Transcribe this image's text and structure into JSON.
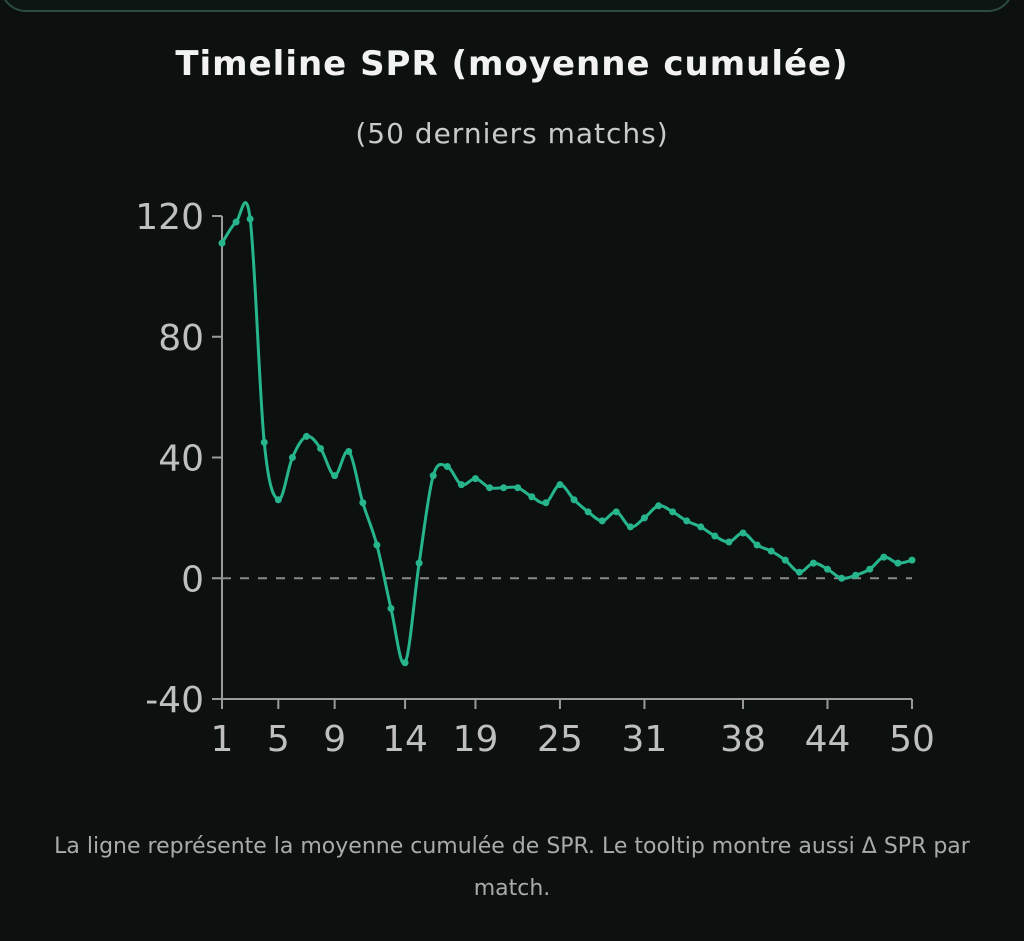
{
  "title": "Timeline SPR (moyenne cumulée)",
  "subtitle": "(50 derniers matchs)",
  "footnote": "La ligne représente la moyenne cumulée de SPR. Le tooltip montre aussi Δ SPR par match.",
  "colors": {
    "background": "#0c110f",
    "line": "#26b58c",
    "axis": "#9a9a9a",
    "zero_line": "#8a8a8a",
    "text": "#bfbfbf"
  },
  "chart_data": {
    "type": "line",
    "title": "Timeline SPR (moyenne cumulée)",
    "subtitle": "(50 derniers matchs)",
    "xlabel": "",
    "ylabel": "",
    "xlim": [
      1,
      50
    ],
    "ylim": [
      -40,
      120
    ],
    "x_ticks": [
      1,
      5,
      9,
      14,
      19,
      25,
      31,
      38,
      44,
      50
    ],
    "y_ticks": [
      -40,
      0,
      40,
      80,
      120
    ],
    "reference_line": {
      "y": 0,
      "style": "dashed"
    },
    "grid": false,
    "series": [
      {
        "x": [
          1,
          2,
          3,
          4,
          5,
          6,
          7,
          8,
          9,
          10,
          11,
          12,
          13,
          14,
          15,
          16,
          17,
          18,
          19,
          20,
          21,
          22,
          23,
          24,
          25,
          26,
          27,
          28,
          29,
          30,
          31,
          32,
          33,
          34,
          35,
          36,
          37,
          38,
          39,
          40,
          41,
          42,
          43,
          44,
          45,
          46,
          47,
          48,
          49,
          50
        ],
        "values": [
          111,
          118,
          119,
          45,
          26,
          40,
          47,
          43,
          34,
          42,
          25,
          11,
          -10,
          -28,
          5,
          34,
          37,
          31,
          33,
          30,
          30,
          30,
          27,
          25,
          31,
          26,
          22,
          19,
          22,
          17,
          20,
          24,
          22,
          19,
          17,
          14,
          12,
          15,
          11,
          9,
          6,
          2,
          5,
          3,
          0,
          1,
          3,
          7,
          5,
          6
        ]
      }
    ]
  }
}
